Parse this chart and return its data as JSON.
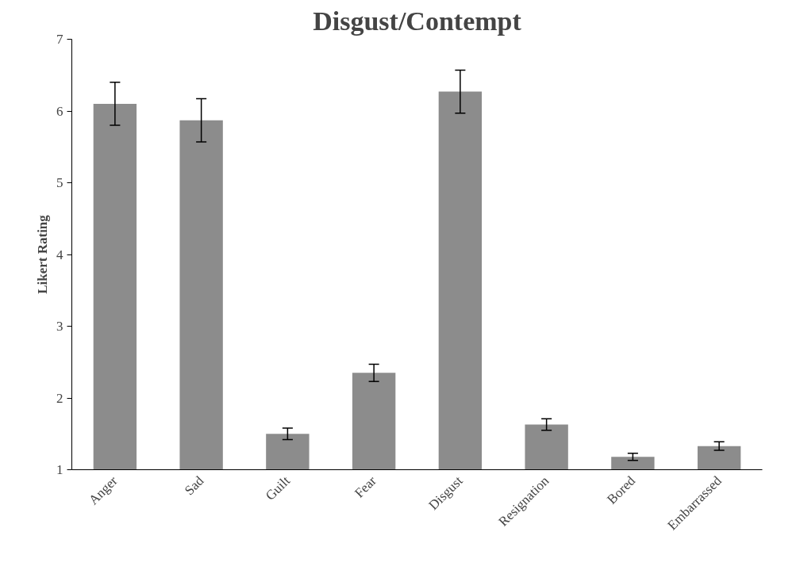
{
  "chart_data": {
    "type": "bar",
    "title": "Disgust/Contempt",
    "ylabel": "Likert Rating",
    "categories": [
      "Anger",
      "Sad",
      "Guilt",
      "Fear",
      "Disgust",
      "Resignation",
      "Bored",
      "Embarrassed"
    ],
    "values": [
      6.1,
      5.87,
      1.5,
      2.35,
      6.27,
      1.63,
      1.18,
      1.33
    ],
    "errors": [
      0.3,
      0.3,
      0.08,
      0.12,
      0.3,
      0.08,
      0.05,
      0.06
    ],
    "color": "#8c8c8c",
    "ylim": [
      1,
      7
    ],
    "yticks": [
      1,
      2,
      3,
      4,
      5,
      6,
      7
    ],
    "grid": false
  }
}
